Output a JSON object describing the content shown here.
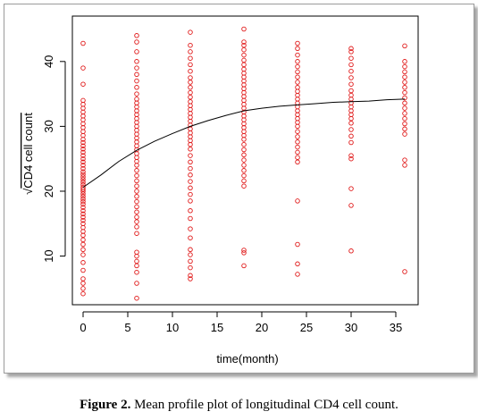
{
  "caption": {
    "label": "Figure 2.",
    "text": " Mean profile plot of longitudinal CD4 cell count."
  },
  "colors": {
    "points": "#e01818",
    "curve": "#000000"
  },
  "chart_data": {
    "type": "scatter",
    "title": "",
    "xlabel": "time(month)",
    "ylabel": "CD4 cell count",
    "ylabel_prefix": "√",
    "xlim": [
      -1.2,
      37.5
    ],
    "ylim": [
      2.5,
      47
    ],
    "xticks": [
      0,
      5,
      10,
      15,
      20,
      25,
      30,
      35
    ],
    "yticks": [
      10,
      20,
      30,
      40
    ],
    "grid": false,
    "legend": "none",
    "series": [
      {
        "type": "scatter",
        "groups": [
          {
            "x": 0,
            "y": [
              4.2,
              5.0,
              5.8,
              6.5,
              7.8,
              9.0,
              10.2,
              11.0,
              11.8,
              12.5,
              13.2,
              13.8,
              14.4,
              15.0,
              15.5,
              16.0,
              16.5,
              17.0,
              17.5,
              18.0,
              18.4,
              18.8,
              19.2,
              19.6,
              20.0,
              20.3,
              20.6,
              21.0,
              21.4,
              21.8,
              22.2,
              22.6,
              23.0,
              23.5,
              24.0,
              24.5,
              25.0,
              25.5,
              26.0,
              26.5,
              27.0,
              27.5,
              28.0,
              28.6,
              29.2,
              29.8,
              30.4,
              31.0,
              31.6,
              32.2,
              32.8,
              33.4,
              34.0,
              36.5,
              39.0,
              42.8
            ]
          },
          {
            "x": 6,
            "y": [
              3.5,
              5.8,
              7.5,
              8.5,
              9.2,
              10.0,
              10.6,
              13.5,
              14.5,
              15.3,
              16.0,
              16.8,
              17.6,
              18.4,
              19.2,
              20.0,
              20.8,
              21.6,
              22.4,
              23.2,
              24.0,
              24.6,
              25.2,
              25.8,
              26.4,
              27.0,
              27.6,
              28.2,
              28.8,
              29.4,
              30.0,
              30.6,
              31.2,
              31.8,
              32.4,
              33.0,
              33.6,
              34.2,
              35.0,
              36.0,
              37.0,
              38.0,
              39.0,
              40.0,
              41.5,
              43.0,
              44.0
            ]
          },
          {
            "x": 12,
            "y": [
              6.5,
              7.0,
              8.2,
              9.2,
              10.2,
              11.0,
              12.8,
              14.2,
              15.8,
              17.0,
              18.5,
              19.5,
              20.5,
              21.5,
              22.5,
              23.5,
              24.5,
              25.5,
              26.5,
              27.2,
              27.8,
              28.4,
              29.0,
              29.6,
              30.2,
              30.8,
              31.4,
              32.0,
              32.6,
              33.2,
              33.8,
              34.5,
              35.2,
              36.0,
              36.8,
              37.5,
              38.5,
              39.5,
              40.5,
              41.5,
              42.5,
              44.5
            ]
          },
          {
            "x": 18,
            "y": [
              8.5,
              10.5,
              10.9,
              20.8,
              21.6,
              22.4,
              23.2,
              24.0,
              24.8,
              25.6,
              26.4,
              27.2,
              28.0,
              28.6,
              29.2,
              29.8,
              30.4,
              31.0,
              31.6,
              32.2,
              32.8,
              33.4,
              34.0,
              34.6,
              35.2,
              35.8,
              36.4,
              37.0,
              37.6,
              38.2,
              38.8,
              39.5,
              40.2,
              41.0,
              41.8,
              42.5,
              43.0,
              45.0
            ]
          },
          {
            "x": 24,
            "y": [
              7.2,
              8.8,
              11.8,
              18.5,
              24.5,
              25.2,
              26.0,
              26.8,
              27.6,
              28.4,
              29.2,
              30.0,
              30.6,
              31.2,
              31.8,
              32.4,
              33.0,
              33.6,
              34.2,
              34.8,
              35.4,
              36.0,
              36.8,
              37.6,
              38.4,
              39.2,
              40.0,
              41.0,
              42.0,
              42.8
            ]
          },
          {
            "x": 30,
            "y": [
              10.8,
              17.8,
              20.4,
              25.0,
              25.5,
              27.5,
              28.5,
              29.5,
              30.5,
              31.2,
              31.8,
              32.4,
              33.0,
              33.6,
              34.2,
              34.8,
              35.5,
              36.5,
              37.5,
              38.5,
              39.5,
              40.5,
              41.5,
              42.0
            ]
          },
          {
            "x": 36,
            "y": [
              7.6,
              24.0,
              24.8,
              28.8,
              29.6,
              30.4,
              31.2,
              32.0,
              32.8,
              33.6,
              34.4,
              35.2,
              36.0,
              36.8,
              37.6,
              38.4,
              39.2,
              40.0,
              42.4
            ]
          }
        ]
      },
      {
        "type": "line",
        "points": [
          [
            0,
            20.6
          ],
          [
            2,
            22.5
          ],
          [
            4,
            24.6
          ],
          [
            6,
            26.3
          ],
          [
            8,
            27.7
          ],
          [
            10,
            28.9
          ],
          [
            12,
            30.0
          ],
          [
            14,
            30.9
          ],
          [
            16,
            31.7
          ],
          [
            18,
            32.4
          ],
          [
            20,
            32.8
          ],
          [
            22,
            33.1
          ],
          [
            24,
            33.3
          ],
          [
            26,
            33.5
          ],
          [
            28,
            33.7
          ],
          [
            30,
            33.8
          ],
          [
            32,
            33.9
          ],
          [
            34,
            34.1
          ],
          [
            36,
            34.2
          ]
        ]
      }
    ]
  }
}
